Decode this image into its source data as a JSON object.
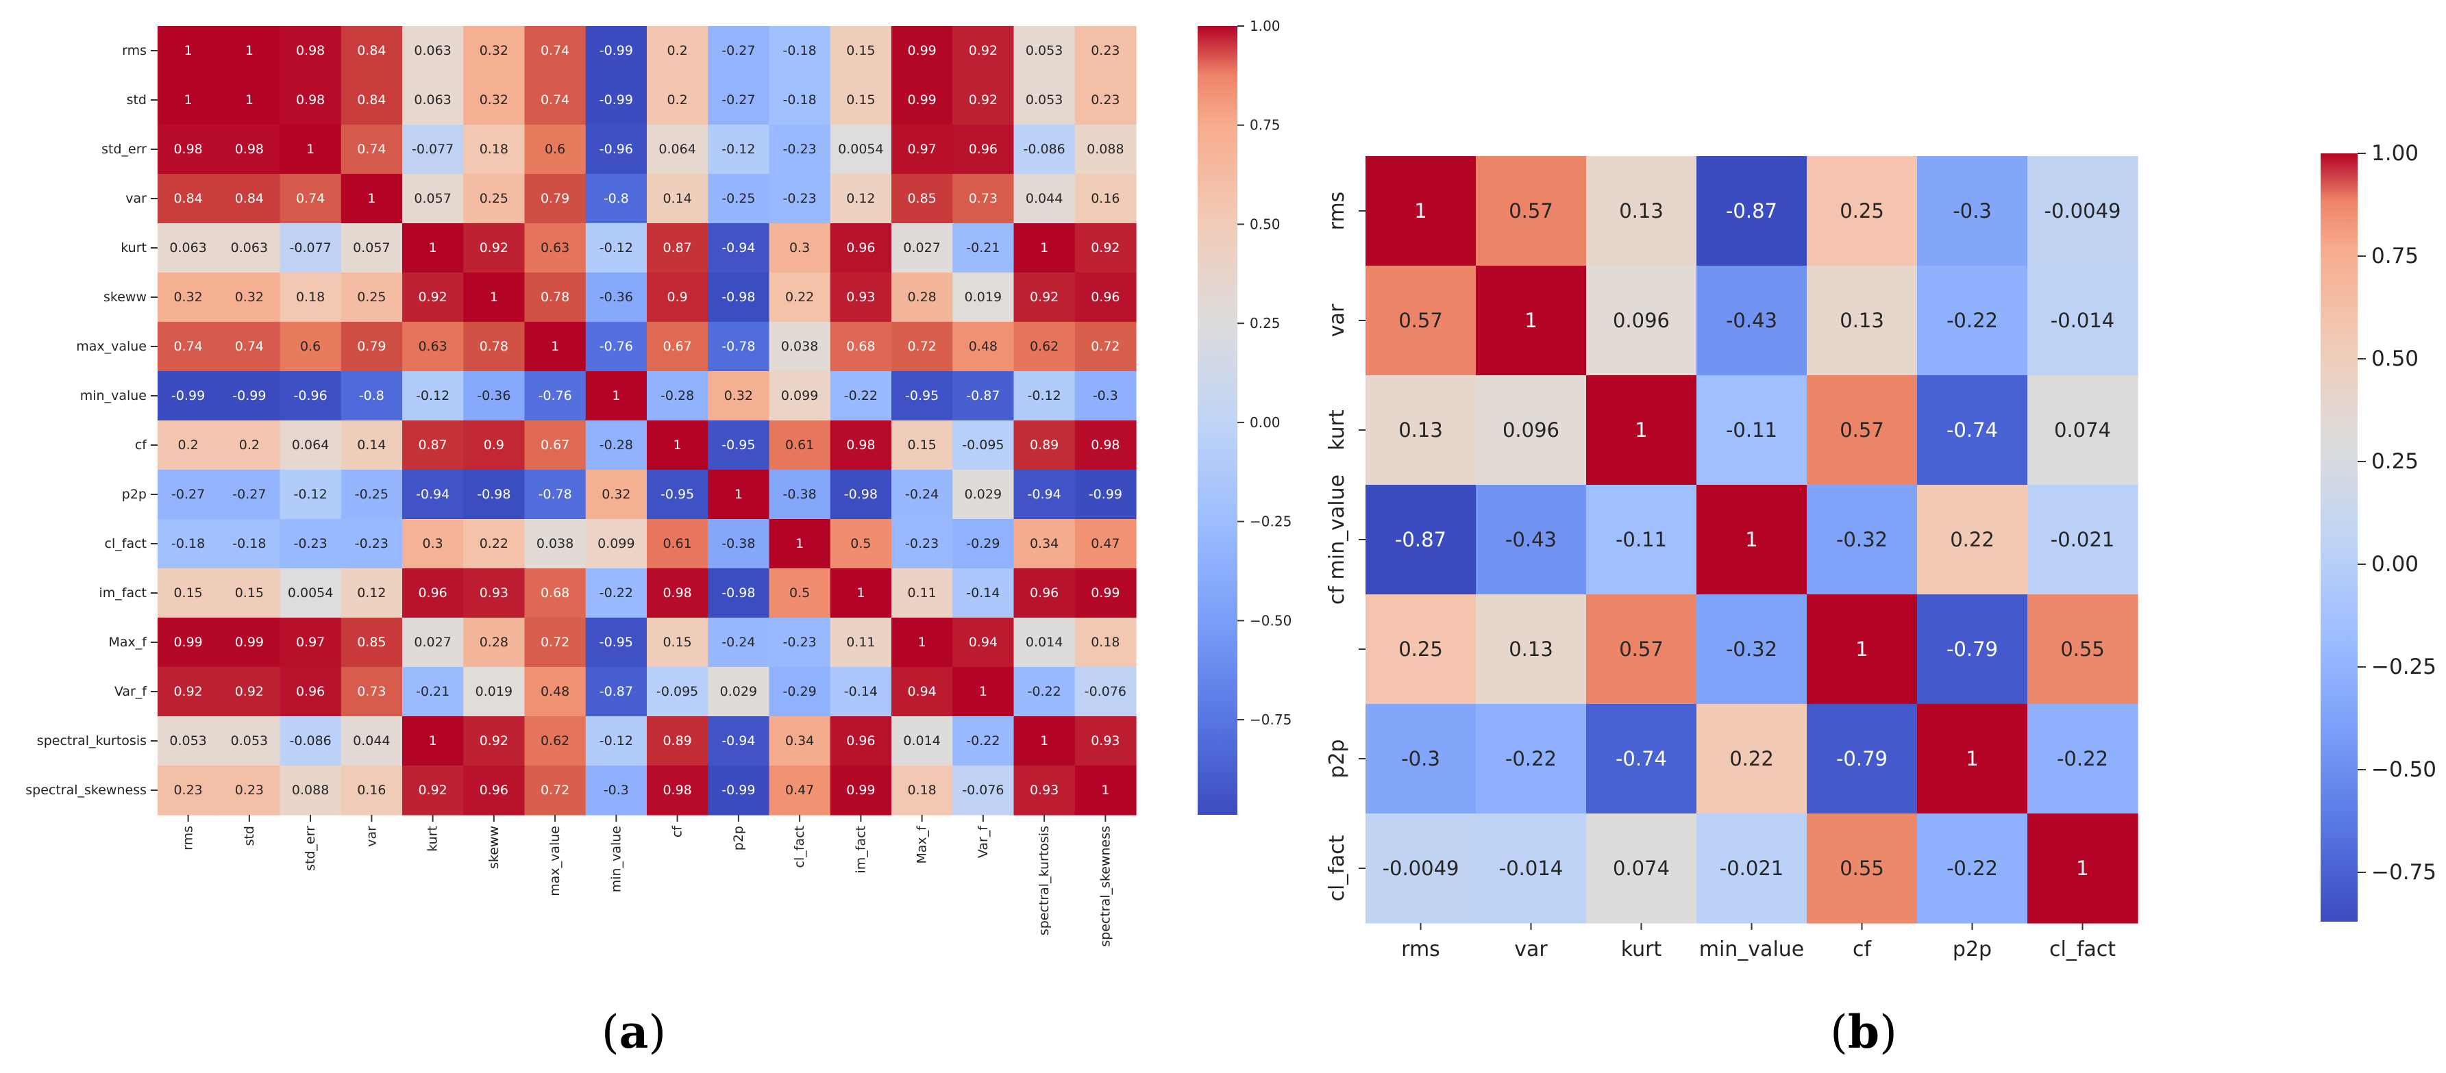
{
  "chart_data": [
    {
      "type": "heatmap",
      "panel_label": "(a)",
      "caption_letter": "a",
      "rows": [
        "rms",
        "std",
        "std_err",
        "var",
        "kurt",
        "skeww",
        "max_value",
        "min_value",
        "cf",
        "p2p",
        "cl_fact",
        "im_fact",
        "Max_f",
        "Var_f",
        "spectral_kurtosis",
        "spectral_skewness"
      ],
      "cols": [
        "rms",
        "std",
        "std_err",
        "var",
        "kurt",
        "skeww",
        "max_value",
        "min_value",
        "cf",
        "p2p",
        "cl_fact",
        "im_fact",
        "Max_f",
        "Var_f",
        "spectral_kurtosis",
        "spectral_skewness"
      ],
      "values": [
        [
          1,
          1,
          0.98,
          0.84,
          0.063,
          0.32,
          0.74,
          -0.99,
          0.2,
          -0.27,
          -0.18,
          0.15,
          0.99,
          0.92,
          0.053,
          0.23
        ],
        [
          1,
          1,
          0.98,
          0.84,
          0.063,
          0.32,
          0.74,
          -0.99,
          0.2,
          -0.27,
          -0.18,
          0.15,
          0.99,
          0.92,
          0.053,
          0.23
        ],
        [
          0.98,
          0.98,
          1,
          0.74,
          -0.077,
          0.18,
          0.6,
          -0.96,
          0.064,
          -0.12,
          -0.23,
          0.0054,
          0.97,
          0.96,
          -0.086,
          0.088
        ],
        [
          0.84,
          0.84,
          0.74,
          1,
          0.057,
          0.25,
          0.79,
          -0.8,
          0.14,
          -0.25,
          -0.23,
          0.12,
          0.85,
          0.73,
          0.044,
          0.16
        ],
        [
          0.063,
          0.063,
          -0.077,
          0.057,
          1,
          0.92,
          0.63,
          -0.12,
          0.87,
          -0.94,
          0.3,
          0.96,
          0.027,
          -0.21,
          1,
          0.92
        ],
        [
          0.32,
          0.32,
          0.18,
          0.25,
          0.92,
          1,
          0.78,
          -0.36,
          0.9,
          -0.98,
          0.22,
          0.93,
          0.28,
          0.019,
          0.92,
          0.96
        ],
        [
          0.74,
          0.74,
          0.6,
          0.79,
          0.63,
          0.78,
          1,
          -0.76,
          0.67,
          -0.78,
          0.038,
          0.68,
          0.72,
          0.48,
          0.62,
          0.72
        ],
        [
          -0.99,
          -0.99,
          -0.96,
          -0.8,
          -0.12,
          -0.36,
          -0.76,
          1,
          -0.28,
          0.32,
          0.099,
          -0.22,
          -0.95,
          -0.87,
          -0.12,
          -0.3
        ],
        [
          0.2,
          0.2,
          0.064,
          0.14,
          0.87,
          0.9,
          0.67,
          -0.28,
          1,
          -0.95,
          0.61,
          0.98,
          0.15,
          -0.095,
          0.89,
          0.98
        ],
        [
          -0.27,
          -0.27,
          -0.12,
          -0.25,
          -0.94,
          -0.98,
          -0.78,
          0.32,
          -0.95,
          1,
          -0.38,
          -0.98,
          -0.24,
          0.029,
          -0.94,
          -0.99
        ],
        [
          -0.18,
          -0.18,
          -0.23,
          -0.23,
          0.3,
          0.22,
          0.038,
          0.099,
          0.61,
          -0.38,
          1,
          0.5,
          -0.23,
          -0.29,
          0.34,
          0.47
        ],
        [
          0.15,
          0.15,
          0.0054,
          0.12,
          0.96,
          0.93,
          0.68,
          -0.22,
          0.98,
          -0.98,
          0.5,
          1,
          0.11,
          -0.14,
          0.96,
          0.99
        ],
        [
          0.99,
          0.99,
          0.97,
          0.85,
          0.027,
          0.28,
          0.72,
          -0.95,
          0.15,
          -0.24,
          -0.23,
          0.11,
          1,
          0.94,
          0.014,
          0.18
        ],
        [
          0.92,
          0.92,
          0.96,
          0.73,
          -0.21,
          0.019,
          0.48,
          -0.87,
          -0.095,
          0.029,
          -0.29,
          -0.14,
          0.94,
          1,
          -0.22,
          -0.076
        ],
        [
          0.053,
          0.053,
          -0.086,
          0.044,
          1,
          0.92,
          0.62,
          -0.12,
          0.89,
          -0.94,
          0.34,
          0.96,
          0.014,
          -0.22,
          1,
          0.93
        ],
        [
          0.23,
          0.23,
          0.088,
          0.16,
          0.92,
          0.96,
          0.72,
          -0.3,
          0.98,
          -0.99,
          0.47,
          0.99,
          0.18,
          -0.076,
          0.93,
          1
        ]
      ],
      "vmin": -0.99,
      "vmax": 1.0,
      "colormap": "coolwarm",
      "colorbar_ticks": [
        "1.00",
        "0.75",
        "0.50",
        "0.25",
        "0.00",
        "−0.25",
        "−0.50",
        "−0.75"
      ]
    },
    {
      "type": "heatmap",
      "panel_label": "(b)",
      "caption_letter": "b",
      "rows": [
        "rms",
        "var",
        "kurt",
        "cf min_value",
        "",
        "p2p",
        "cl_fact"
      ],
      "cols": [
        "rms",
        "var",
        "kurt",
        "min_value",
        "cf",
        "p2p",
        "cl_fact"
      ],
      "values": [
        [
          1,
          0.57,
          0.13,
          -0.87,
          0.25,
          -0.3,
          -0.0049
        ],
        [
          0.57,
          1,
          0.096,
          -0.43,
          0.13,
          -0.22,
          -0.014
        ],
        [
          0.13,
          0.096,
          1,
          -0.11,
          0.57,
          -0.74,
          0.074
        ],
        [
          -0.87,
          -0.43,
          -0.11,
          1,
          -0.32,
          0.22,
          -0.021
        ],
        [
          0.25,
          0.13,
          0.57,
          -0.32,
          1,
          -0.79,
          0.55
        ],
        [
          -0.3,
          -0.22,
          -0.74,
          0.22,
          -0.79,
          1,
          -0.22
        ],
        [
          -0.0049,
          -0.014,
          0.074,
          -0.021,
          0.55,
          -0.22,
          1
        ]
      ],
      "vmin": -0.87,
      "vmax": 1.0,
      "colormap": "coolwarm",
      "colorbar_ticks": [
        "1.00",
        "0.75",
        "0.50",
        "0.25",
        "0.00",
        "−0.25",
        "−0.50",
        "−0.75"
      ]
    }
  ],
  "colors": {
    "cold": "#3b4cc0",
    "neutral": "#dddcdc",
    "warm": "#b40426"
  }
}
